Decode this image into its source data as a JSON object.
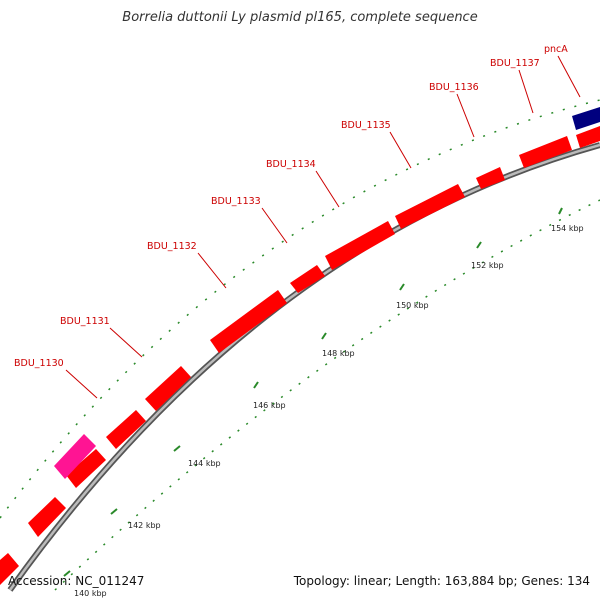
{
  "title": "Borrelia duttonii Ly plasmid pl165, complete sequence",
  "accession": "Accession: NC_011247",
  "summary": "Topology: linear; Length: 163,884 bp; Genes: 134",
  "gene_labels": [
    "BDU_1130",
    "BDU_1131",
    "BDU_1132",
    "BDU_1133",
    "BDU_1134",
    "BDU_1135",
    "BDU_1136",
    "BDU_1137",
    "pncA"
  ],
  "ticks": [
    "140 kbp",
    "142 kbp",
    "144 kbp",
    "146 kbp",
    "148 kbp",
    "150 kbp",
    "152 kbp",
    "154 kbp"
  ],
  "colors": {
    "gene": "#ff0000",
    "gene_highlight": "#ff1493",
    "gene_special": "#00007f",
    "label": "#cc0000",
    "backbone": "#999999",
    "tick": "#007700"
  }
}
